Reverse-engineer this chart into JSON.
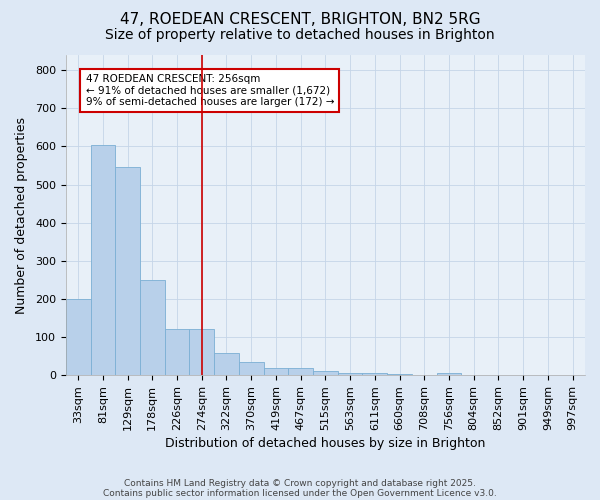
{
  "title1": "47, ROEDEAN CRESCENT, BRIGHTON, BN2 5RG",
  "title2": "Size of property relative to detached houses in Brighton",
  "xlabel": "Distribution of detached houses by size in Brighton",
  "ylabel": "Number of detached properties",
  "categories": [
    "33sqm",
    "81sqm",
    "129sqm",
    "178sqm",
    "226sqm",
    "274sqm",
    "322sqm",
    "370sqm",
    "419sqm",
    "467sqm",
    "515sqm",
    "563sqm",
    "611sqm",
    "660sqm",
    "708sqm",
    "756sqm",
    "804sqm",
    "852sqm",
    "901sqm",
    "949sqm",
    "997sqm"
  ],
  "values": [
    200,
    605,
    545,
    250,
    120,
    120,
    58,
    35,
    18,
    18,
    12,
    5,
    5,
    2,
    0,
    5,
    0,
    0,
    0,
    0,
    0
  ],
  "bar_color": "#b8d0ea",
  "bar_edge_color": "#7bafd4",
  "red_line_x": 5.0,
  "red_line_color": "#cc0000",
  "annotation_text": "47 ROEDEAN CRESCENT: 256sqm\n← 91% of detached houses are smaller (1,672)\n9% of semi-detached houses are larger (172) →",
  "annotation_box_color": "#ffffff",
  "annotation_box_edge": "#cc0000",
  "ylim": [
    0,
    840
  ],
  "yticks": [
    0,
    100,
    200,
    300,
    400,
    500,
    600,
    700,
    800
  ],
  "footnote1": "Contains HM Land Registry data © Crown copyright and database right 2025.",
  "footnote2": "Contains public sector information licensed under the Open Government Licence v3.0.",
  "background_color": "#dde8f5",
  "plot_bg_color": "#e8f0f8",
  "title1_fontsize": 11,
  "title2_fontsize": 10,
  "tick_fontsize": 8,
  "label_fontsize": 9,
  "footnote_fontsize": 6.5
}
